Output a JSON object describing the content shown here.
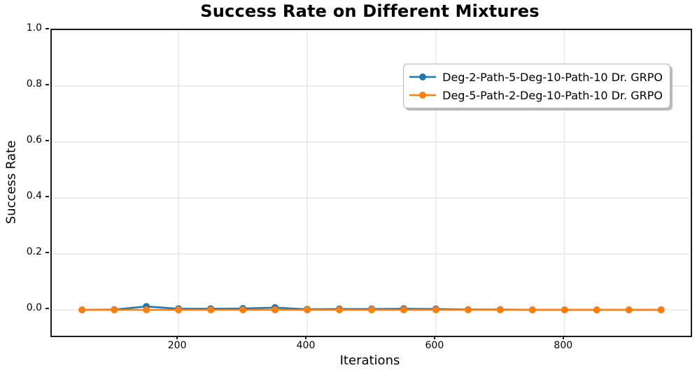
{
  "title": "Success Rate on Different Mixtures",
  "axes": {
    "xlabel": "Iterations",
    "ylabel": "Success Rate"
  },
  "colors": {
    "series_blue": "#1f77b4",
    "series_orange": "#ff7f0e",
    "grid": "#dedede",
    "spine": "#1a1a1a",
    "legend_border": "#b4b4b4",
    "background": "#ffffff"
  },
  "chart_data": {
    "type": "line",
    "title": "Success Rate on Different Mixtures",
    "xlabel": "Iterations",
    "ylabel": "Success Rate",
    "x": [
      50,
      100,
      150,
      200,
      250,
      300,
      350,
      400,
      450,
      500,
      550,
      600,
      650,
      700,
      750,
      800,
      850,
      900,
      950
    ],
    "series": [
      {
        "name": "Deg-2-Path-5-Deg-10-Path-10 Dr. GRPO",
        "color": "#1f77b4",
        "values": [
          0.0,
          0.001,
          0.012,
          0.004,
          0.004,
          0.005,
          0.008,
          0.002,
          0.003,
          0.003,
          0.004,
          0.003,
          0.001,
          0.001,
          0.0,
          0.0,
          0.0,
          0.0,
          0.0
        ]
      },
      {
        "name": "Deg-5-Path-2-Deg-10-Path-10 Dr. GRPO",
        "color": "#ff7f0e",
        "values": [
          0.0,
          0.0,
          0.0,
          0.0,
          0.0,
          0.0,
          0.0,
          0.0,
          0.0,
          0.0,
          0.0,
          0.0,
          0.0,
          0.0,
          0.0,
          0.0,
          0.0,
          0.0,
          0.0
        ]
      }
    ],
    "xlim": [
      3,
      996
    ],
    "ylim": [
      -0.0925,
      1.0
    ],
    "xticks": [
      200,
      400,
      600,
      800
    ],
    "yticks": [
      0.0,
      0.2,
      0.4,
      0.6,
      0.8,
      1.0
    ],
    "grid": true,
    "legend_position": "upper right",
    "marker": "circle",
    "marker_radius": 5,
    "line_width": 2.6
  }
}
